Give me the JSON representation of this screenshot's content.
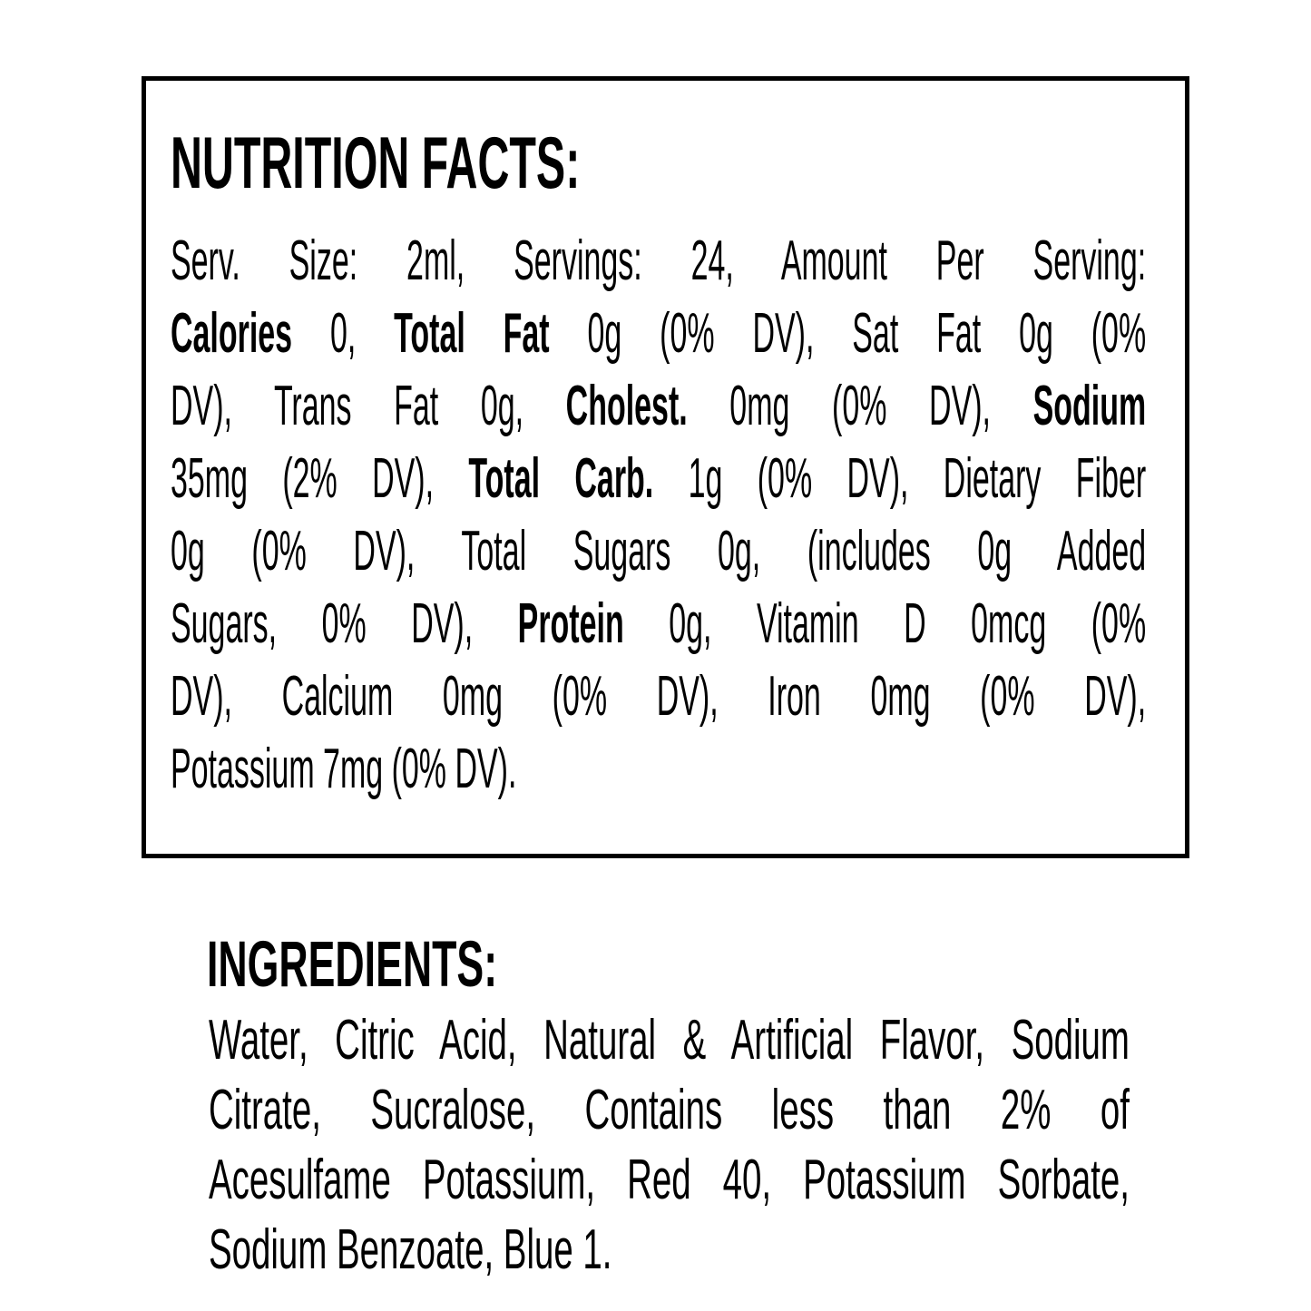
{
  "page": {
    "background_color": "#ffffff",
    "text_color": "#000000",
    "box_border_color": "#000000"
  },
  "nutrition_facts": {
    "title": "NUTRITION FACTS:",
    "lines": [
      [
        {
          "t": "Serv. Size: 2ml, Servings: 24, Amount Per Serving:",
          "b": false
        }
      ],
      [
        {
          "t": "Calories",
          "b": true
        },
        {
          "t": " 0, ",
          "b": false
        },
        {
          "t": "Total Fat",
          "b": true
        },
        {
          "t": " 0g (0% DV), Sat Fat 0g (0%",
          "b": false
        }
      ],
      [
        {
          "t": "DV), Trans Fat 0g, ",
          "b": false
        },
        {
          "t": "Cholest.",
          "b": true
        },
        {
          "t": " 0mg (0% DV), ",
          "b": false
        },
        {
          "t": "Sodium",
          "b": true
        }
      ],
      [
        {
          "t": "35mg (2% DV), ",
          "b": false
        },
        {
          "t": "Total Carb.",
          "b": true
        },
        {
          "t": " 1g (0% DV), Dietary Fiber",
          "b": false
        }
      ],
      [
        {
          "t": "0g (0% DV), Total Sugars 0g, (includes 0g Added",
          "b": false
        }
      ],
      [
        {
          "t": "Sugars, 0% DV), ",
          "b": false
        },
        {
          "t": "Protein",
          "b": true
        },
        {
          "t": " 0g, Vitamin D 0mcg (0%",
          "b": false
        }
      ],
      [
        {
          "t": "DV), Calcium 0mg (0% DV), Iron 0mg (0% DV),",
          "b": false
        }
      ],
      [
        {
          "t": "Potassium 7mg (0% DV).",
          "b": false
        }
      ]
    ]
  },
  "ingredients": {
    "title": "INGREDIENTS:",
    "lines": [
      [
        {
          "t": "Water, Citric Acid, Natural & Artificial Flavor, Sodium",
          "b": false
        }
      ],
      [
        {
          "t": "Citrate, Sucralose, Contains less than 2% of",
          "b": false
        }
      ],
      [
        {
          "t": "Acesulfame Potassium, Red 40, Potassium Sorbate,",
          "b": false
        }
      ],
      [
        {
          "t": "Sodium Benzoate, Blue 1.",
          "b": false
        }
      ]
    ]
  }
}
